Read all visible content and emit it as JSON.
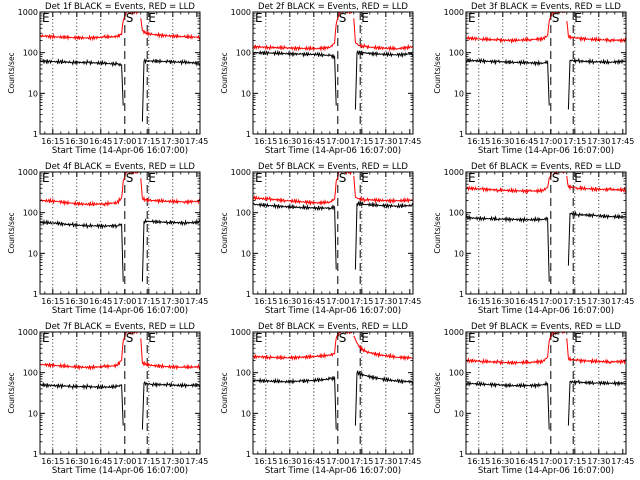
{
  "figure": {
    "panel_title_template": "Det {n}f BLACK = Events, RED = LLD",
    "xlabel": "Start Time (14-Apr-06 16:07:00)",
    "ylabel": "Counts/sec",
    "x_tick_labels": [
      "16:15",
      "16:30",
      "16:45",
      "17:00",
      "17:15",
      "17:30",
      "17:45"
    ],
    "y_tick_labels": [
      "1",
      "10",
      "100",
      "1000"
    ],
    "marker_labels": {
      "start": "S",
      "end": "E"
    },
    "colors": {
      "events": "#000000",
      "lld": "#ff0000"
    }
  },
  "chart_data": [
    {
      "type": "line",
      "title": "Det 1f BLACK = Events, RED = LLD",
      "xlabel": "Start Time (14-Apr-06 16:07:00)",
      "ylabel": "Counts/sec",
      "x_unit": "minutes since 16:07:00",
      "xlim": [
        0,
        100
      ],
      "ylim": [
        1,
        1000
      ],
      "yscale": "log",
      "gap_minutes": [
        52,
        64
      ],
      "start_marker_minute": 53,
      "end_marker_minute": 67,
      "dotted_lines_minutes": [
        8,
        23,
        38,
        68,
        83
      ],
      "series": [
        {
          "name": "Events",
          "color": "#000000",
          "x": [
            0,
            10,
            20,
            30,
            40,
            48,
            51,
            52,
            64,
            65,
            70,
            80,
            90,
            100
          ],
          "y": [
            62,
            60,
            58,
            57,
            55,
            52,
            50,
            5,
            2,
            62,
            63,
            60,
            58,
            55
          ]
        },
        {
          "name": "LLD",
          "color": "#ff0000",
          "x": [
            0,
            10,
            20,
            30,
            40,
            48,
            51,
            52,
            54,
            62,
            63,
            64,
            66,
            70,
            80,
            90,
            100
          ],
          "y": [
            260,
            245,
            235,
            230,
            240,
            250,
            280,
            600,
            1000,
            1000,
            700,
            350,
            300,
            280,
            260,
            245,
            240
          ]
        }
      ]
    },
    {
      "type": "line",
      "title": "Det 2f BLACK = Events, RED = LLD",
      "xlabel": "Start Time (14-Apr-06 16:07:00)",
      "ylabel": "Counts/sec",
      "x_unit": "minutes since 16:07:00",
      "xlim": [
        0,
        100
      ],
      "ylim": [
        1,
        1000
      ],
      "yscale": "log",
      "gap_minutes": [
        52,
        64
      ],
      "start_marker_minute": 53,
      "end_marker_minute": 67,
      "dotted_lines_minutes": [
        8,
        23,
        38,
        68,
        83
      ],
      "series": [
        {
          "name": "Events",
          "color": "#000000",
          "x": [
            0,
            10,
            20,
            30,
            40,
            48,
            51,
            52,
            64,
            65,
            70,
            80,
            90,
            100
          ],
          "y": [
            100,
            98,
            95,
            92,
            90,
            85,
            80,
            5,
            4,
            100,
            98,
            92,
            88,
            95
          ]
        },
        {
          "name": "LLD",
          "color": "#ff0000",
          "x": [
            0,
            10,
            20,
            30,
            40,
            48,
            51,
            52,
            54,
            62,
            63,
            64,
            66,
            70,
            80,
            90,
            100
          ],
          "y": [
            140,
            135,
            130,
            128,
            125,
            135,
            170,
            500,
            1000,
            1000,
            700,
            180,
            150,
            140,
            130,
            125,
            140
          ]
        }
      ]
    },
    {
      "type": "line",
      "title": "Det 3f BLACK = Events, RED = LLD",
      "xlabel": "Start Time (14-Apr-06 16:07:00)",
      "ylabel": "Counts/sec",
      "x_unit": "minutes since 16:07:00",
      "xlim": [
        0,
        100
      ],
      "ylim": [
        1,
        1000
      ],
      "yscale": "log",
      "gap_minutes": [
        52,
        64
      ],
      "start_marker_minute": 53,
      "end_marker_minute": 67,
      "dotted_lines_minutes": [
        8,
        23,
        38,
        68,
        83
      ],
      "series": [
        {
          "name": "Events",
          "color": "#000000",
          "x": [
            0,
            10,
            20,
            30,
            40,
            48,
            51,
            52,
            64,
            65,
            70,
            80,
            90,
            100
          ],
          "y": [
            65,
            62,
            60,
            58,
            56,
            55,
            60,
            5,
            4,
            65,
            62,
            60,
            58,
            62
          ]
        },
        {
          "name": "LLD",
          "color": "#ff0000",
          "x": [
            0,
            10,
            20,
            30,
            40,
            48,
            51,
            52,
            54,
            62,
            63,
            64,
            66,
            70,
            80,
            90,
            100
          ],
          "y": [
            230,
            215,
            205,
            200,
            210,
            220,
            260,
            600,
            1000,
            1000,
            600,
            250,
            240,
            225,
            210,
            205,
            200
          ]
        }
      ]
    },
    {
      "type": "line",
      "title": "Det 4f BLACK = Events, RED = LLD",
      "xlabel": "Start Time (14-Apr-06 16:07:00)",
      "ylabel": "Counts/sec",
      "x_unit": "minutes since 16:07:00",
      "xlim": [
        0,
        100
      ],
      "ylim": [
        1,
        1000
      ],
      "yscale": "log",
      "gap_minutes": [
        52,
        64
      ],
      "start_marker_minute": 53,
      "end_marker_minute": 67,
      "dotted_lines_minutes": [
        8,
        23,
        38,
        68,
        83
      ],
      "series": [
        {
          "name": "Events",
          "color": "#000000",
          "x": [
            0,
            10,
            20,
            30,
            40,
            48,
            51,
            52,
            64,
            65,
            70,
            80,
            90,
            100
          ],
          "y": [
            58,
            55,
            50,
            48,
            47,
            48,
            52,
            2,
            2,
            62,
            60,
            58,
            56,
            58
          ]
        },
        {
          "name": "LLD",
          "color": "#ff0000",
          "x": [
            0,
            10,
            20,
            30,
            40,
            48,
            51,
            52,
            54,
            62,
            63,
            64,
            66,
            70,
            80,
            90,
            100
          ],
          "y": [
            200,
            190,
            170,
            160,
            165,
            175,
            230,
            600,
            1000,
            1000,
            700,
            220,
            210,
            200,
            190,
            185,
            190
          ]
        }
      ]
    },
    {
      "type": "line",
      "title": "Det 5f BLACK = Events, RED = LLD",
      "xlabel": "Start Time (14-Apr-06 16:07:00)",
      "ylabel": "Counts/sec",
      "x_unit": "minutes since 16:07:00",
      "xlim": [
        0,
        100
      ],
      "ylim": [
        1,
        1000
      ],
      "yscale": "log",
      "gap_minutes": [
        52,
        64
      ],
      "start_marker_minute": 53,
      "end_marker_minute": 67,
      "dotted_lines_minutes": [
        8,
        23,
        38,
        68,
        83
      ],
      "series": [
        {
          "name": "Events",
          "color": "#000000",
          "x": [
            0,
            10,
            20,
            30,
            40,
            48,
            51,
            52,
            64,
            65,
            70,
            80,
            90,
            100
          ],
          "y": [
            160,
            150,
            140,
            135,
            130,
            130,
            135,
            4,
            4,
            170,
            160,
            150,
            145,
            150
          ]
        },
        {
          "name": "LLD",
          "color": "#ff0000",
          "x": [
            0,
            10,
            20,
            30,
            40,
            48,
            51,
            52,
            54,
            62,
            63,
            64,
            66,
            70,
            80,
            90,
            100
          ],
          "y": [
            230,
            215,
            200,
            185,
            175,
            180,
            220,
            600,
            1000,
            1000,
            800,
            240,
            220,
            210,
            200,
            195,
            205
          ]
        }
      ]
    },
    {
      "type": "line",
      "title": "Det 6f BLACK = Events, RED = LLD",
      "xlabel": "Start Time (14-Apr-06 16:07:00)",
      "ylabel": "Counts/sec",
      "x_unit": "minutes since 16:07:00",
      "xlim": [
        0,
        100
      ],
      "ylim": [
        1,
        1000
      ],
      "yscale": "log",
      "gap_minutes": [
        52,
        64
      ],
      "start_marker_minute": 53,
      "end_marker_minute": 67,
      "dotted_lines_minutes": [
        8,
        23,
        38,
        68,
        83
      ],
      "series": [
        {
          "name": "Events",
          "color": "#000000",
          "x": [
            0,
            10,
            20,
            30,
            40,
            48,
            51,
            52,
            64,
            65,
            70,
            80,
            90,
            100
          ],
          "y": [
            75,
            72,
            70,
            68,
            67,
            68,
            72,
            2,
            5,
            95,
            90,
            85,
            80,
            78
          ]
        },
        {
          "name": "LLD",
          "color": "#ff0000",
          "x": [
            0,
            10,
            20,
            30,
            40,
            48,
            51,
            52,
            54,
            62,
            63,
            64,
            66,
            70,
            80,
            90,
            100
          ],
          "y": [
            400,
            380,
            360,
            345,
            340,
            345,
            420,
            700,
            1000,
            1000,
            800,
            430,
            420,
            400,
            380,
            370,
            360
          ]
        }
      ]
    },
    {
      "type": "line",
      "title": "Det 7f BLACK = Events, RED = LLD",
      "xlabel": "Start Time (14-Apr-06 16:07:00)",
      "ylabel": "Counts/sec",
      "x_unit": "minutes since 16:07:00",
      "xlim": [
        0,
        100
      ],
      "ylim": [
        1,
        1000
      ],
      "yscale": "log",
      "gap_minutes": [
        52,
        64
      ],
      "start_marker_minute": 53,
      "end_marker_minute": 67,
      "dotted_lines_minutes": [
        8,
        23,
        38,
        68,
        83
      ],
      "series": [
        {
          "name": "Events",
          "color": "#000000",
          "x": [
            0,
            10,
            20,
            30,
            40,
            48,
            51,
            52,
            64,
            65,
            70,
            80,
            90,
            100
          ],
          "y": [
            50,
            48,
            46,
            45,
            44,
            45,
            50,
            5,
            4,
            55,
            52,
            50,
            48,
            50
          ]
        },
        {
          "name": "LLD",
          "color": "#ff0000",
          "x": [
            0,
            10,
            20,
            30,
            40,
            48,
            51,
            52,
            54,
            62,
            63,
            64,
            66,
            70,
            80,
            90,
            100
          ],
          "y": [
            160,
            150,
            140,
            135,
            140,
            150,
            200,
            600,
            1000,
            1000,
            700,
            170,
            160,
            150,
            140,
            135,
            140
          ]
        }
      ]
    },
    {
      "type": "line",
      "title": "Det 8f BLACK = Events, RED = LLD",
      "xlabel": "Start Time (14-Apr-06 16:07:00)",
      "ylabel": "Counts/sec",
      "x_unit": "minutes since 16:07:00",
      "xlim": [
        0,
        100
      ],
      "ylim": [
        1,
        1000
      ],
      "yscale": "log",
      "gap_minutes": [
        52,
        64
      ],
      "start_marker_minute": 53,
      "end_marker_minute": 67,
      "dotted_lines_minutes": [
        8,
        23,
        38,
        68,
        83
      ],
      "series": [
        {
          "name": "Events",
          "color": "#000000",
          "x": [
            0,
            10,
            20,
            30,
            40,
            48,
            51,
            52,
            64,
            65,
            70,
            80,
            90,
            100
          ],
          "y": [
            65,
            62,
            60,
            62,
            65,
            70,
            75,
            4,
            5,
            100,
            85,
            70,
            62,
            60
          ]
        },
        {
          "name": "LLD",
          "color": "#ff0000",
          "x": [
            0,
            10,
            20,
            30,
            40,
            48,
            51,
            52,
            54,
            62,
            63,
            64,
            66,
            70,
            80,
            90,
            100
          ],
          "y": [
            250,
            240,
            230,
            240,
            250,
            270,
            290,
            700,
            1000,
            1000,
            800,
            650,
            450,
            330,
            270,
            240,
            230
          ]
        }
      ]
    },
    {
      "type": "line",
      "title": "Det 9f BLACK = Events, RED = LLD",
      "xlabel": "Start Time (14-Apr-06 16:07:00)",
      "ylabel": "Counts/sec",
      "x_unit": "minutes since 16:07:00",
      "xlim": [
        0,
        100
      ],
      "ylim": [
        1,
        1000
      ],
      "yscale": "log",
      "gap_minutes": [
        52,
        64
      ],
      "start_marker_minute": 53,
      "end_marker_minute": 67,
      "dotted_lines_minutes": [
        8,
        23,
        38,
        68,
        83
      ],
      "series": [
        {
          "name": "Events",
          "color": "#000000",
          "x": [
            0,
            10,
            20,
            30,
            40,
            48,
            51,
            52,
            64,
            65,
            70,
            80,
            90,
            100
          ],
          "y": [
            55,
            52,
            50,
            48,
            48,
            50,
            55,
            4,
            5,
            60,
            58,
            56,
            55,
            55
          ]
        },
        {
          "name": "LLD",
          "color": "#ff0000",
          "x": [
            0,
            10,
            20,
            30,
            40,
            48,
            51,
            52,
            54,
            62,
            63,
            64,
            66,
            70,
            80,
            90,
            100
          ],
          "y": [
            200,
            190,
            180,
            175,
            180,
            190,
            240,
            600,
            1000,
            1000,
            700,
            220,
            210,
            200,
            190,
            185,
            190
          ]
        }
      ]
    }
  ]
}
